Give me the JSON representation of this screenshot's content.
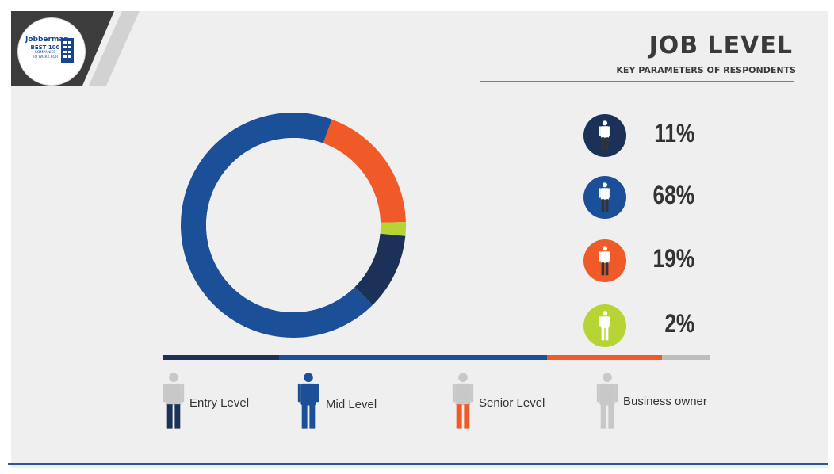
{
  "header": {
    "title": "JOB LEVEL",
    "subtitle": "KEY PARAMETERS OF RESPONDENTS"
  },
  "logo": {
    "brand": "Jobberman",
    "line1": "BEST 100",
    "line2": "COMPANIES",
    "line3": "TO WORK FOR"
  },
  "colors": {
    "entry": "#1c3158",
    "mid": "#1b4f98",
    "senior": "#f05a28",
    "owner": "#b6d433",
    "accent": "#f05a28",
    "bar_owner": "#bdbdbd"
  },
  "stats": [
    {
      "value": "11%",
      "circle_color": "#1c3158",
      "icon": "person-icon"
    },
    {
      "value": "68%",
      "circle_color": "#1b4f98",
      "icon": "person-icon"
    },
    {
      "value": "19%",
      "circle_color": "#f05a28",
      "icon": "person-icon"
    },
    {
      "value": "2%",
      "circle_color": "#b6d433",
      "icon": "person-icon"
    }
  ],
  "legend": [
    {
      "label": "Entry Level",
      "icon": "person-icon"
    },
    {
      "label": "Mid Level",
      "icon": "person-icon"
    },
    {
      "label": "Senior Level",
      "icon": "person-icon"
    },
    {
      "label": "Business owner",
      "icon": "person-icon"
    }
  ],
  "chart_data": {
    "type": "pie",
    "title": "JOB LEVEL",
    "subtitle": "KEY PARAMETERS OF RESPONDENTS",
    "categories": [
      "Entry Level",
      "Mid Level",
      "Senior Level",
      "Business owner"
    ],
    "values": [
      11,
      68,
      19,
      2
    ],
    "unit": "%",
    "donut": true,
    "legend_placement": "bottom"
  }
}
